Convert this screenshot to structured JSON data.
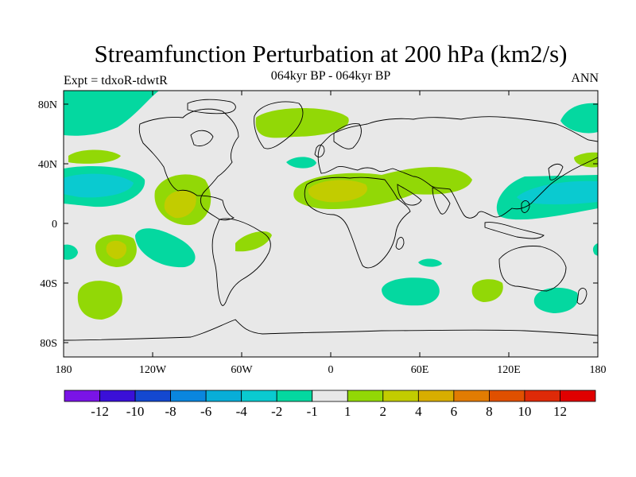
{
  "title": "Streamfunction Perturbation at 200 hPa (km2/s)",
  "experiment": "Expt = tdxoR-tdwtR",
  "period": "064kyr BP - 064kyr BP",
  "season": "ANN",
  "lat_labels": [
    "80N",
    "40N",
    "0",
    "40S",
    "80S"
  ],
  "lon_labels": [
    "180",
    "120W",
    "60W",
    "0",
    "60E",
    "120E",
    "180"
  ],
  "colorbar": {
    "labels": [
      "-12",
      "-10",
      "-8",
      "-6",
      "-4",
      "-2",
      "-1",
      "1",
      "2",
      "4",
      "6",
      "8",
      "10",
      "12"
    ],
    "colors": [
      "#7a14e6",
      "#3a10d8",
      "#1448d0",
      "#0a86de",
      "#08aed8",
      "#0acad0",
      "#04d8a0",
      "#e8e8e8",
      "#92d806",
      "#c2cc00",
      "#d8ae00",
      "#e27c02",
      "#e05000",
      "#de2a08",
      "#e00000"
    ]
  },
  "colors": {
    "background": "#e8e8e8",
    "coast": "#000000"
  }
}
